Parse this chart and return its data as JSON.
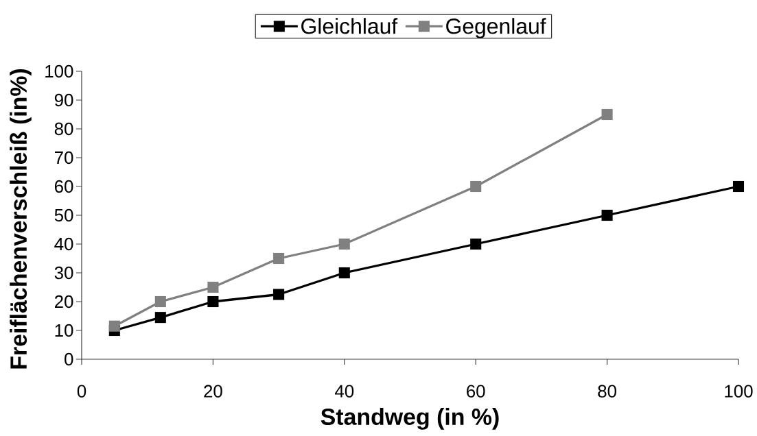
{
  "chart_data": {
    "type": "line",
    "xlabel": "Standweg  (in %)",
    "ylabel": "Freiflächenverschleiß  (in%)",
    "x": [
      5,
      12,
      20,
      30,
      40,
      60,
      80,
      100
    ],
    "series": [
      {
        "name": "Gleichlauf",
        "color": "#000000",
        "values": [
          10,
          14.5,
          20,
          22.5,
          30,
          40,
          50,
          60
        ]
      },
      {
        "name": "Gegenlauf",
        "color": "#808080",
        "values": [
          11.5,
          20,
          25,
          35,
          40,
          60,
          85,
          null
        ]
      }
    ],
    "xlim": [
      0,
      100
    ],
    "ylim": [
      0,
      100
    ],
    "xticks": [
      0,
      20,
      40,
      60,
      80,
      100
    ],
    "yticks": [
      0,
      10,
      20,
      30,
      40,
      50,
      60,
      70,
      80,
      90,
      100
    ],
    "legend": "top",
    "marker": "square",
    "line_style": "solid"
  }
}
